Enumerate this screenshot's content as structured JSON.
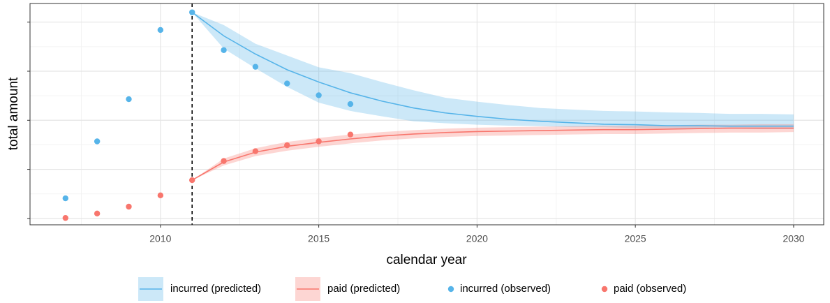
{
  "chart_data": {
    "type": "line",
    "xlabel": "calendar year",
    "ylabel": "total amount",
    "xlim": [
      2005.88,
      2030.95
    ],
    "xticks": [
      2010,
      2015,
      2020,
      2025,
      2030
    ],
    "ylim": [
      -0.13,
      4.38
    ],
    "yticks": [
      0,
      1,
      2,
      3,
      4
    ],
    "grid": true,
    "legend": "bottom",
    "vline": 2011,
    "series": [
      {
        "name": "incurred (predicted)",
        "style": "band",
        "color": "#56b4e9",
        "x": [
          2011,
          2012,
          2013,
          2014,
          2015,
          2016,
          2017,
          2018,
          2019,
          2020,
          2021,
          2022,
          2023,
          2024,
          2025,
          2026,
          2027,
          2028,
          2029,
          2030
        ],
        "values": [
          4.2,
          3.72,
          3.35,
          3.03,
          2.78,
          2.56,
          2.39,
          2.25,
          2.15,
          2.08,
          2.02,
          1.98,
          1.95,
          1.92,
          1.91,
          1.89,
          1.89,
          1.88,
          1.88,
          1.88
        ],
        "lower": [
          4.2,
          3.46,
          3.06,
          2.68,
          2.36,
          2.19,
          2.08,
          1.98,
          1.94,
          1.91,
          1.89,
          1.88,
          1.86,
          1.86,
          1.84,
          1.84,
          1.83,
          1.83,
          1.82,
          1.82
        ],
        "upper": [
          4.2,
          3.94,
          3.56,
          3.32,
          3.08,
          2.96,
          2.78,
          2.61,
          2.46,
          2.38,
          2.31,
          2.25,
          2.22,
          2.19,
          2.18,
          2.16,
          2.15,
          2.13,
          2.13,
          2.12
        ]
      },
      {
        "name": "paid (predicted)",
        "style": "band",
        "color": "#f8766d",
        "x": [
          2011,
          2012,
          2013,
          2014,
          2015,
          2016,
          2017,
          2018,
          2019,
          2020,
          2021,
          2022,
          2023,
          2024,
          2025,
          2026,
          2027,
          2028,
          2029,
          2030
        ],
        "values": [
          0.78,
          1.15,
          1.35,
          1.47,
          1.55,
          1.62,
          1.68,
          1.72,
          1.75,
          1.77,
          1.78,
          1.79,
          1.8,
          1.81,
          1.81,
          1.82,
          1.83,
          1.84,
          1.84,
          1.84
        ],
        "lower": [
          0.78,
          1.08,
          1.27,
          1.38,
          1.46,
          1.53,
          1.59,
          1.63,
          1.66,
          1.68,
          1.69,
          1.7,
          1.71,
          1.72,
          1.72,
          1.73,
          1.74,
          1.75,
          1.75,
          1.76
        ],
        "upper": [
          0.78,
          1.22,
          1.43,
          1.56,
          1.64,
          1.71,
          1.76,
          1.8,
          1.83,
          1.85,
          1.86,
          1.87,
          1.88,
          1.89,
          1.89,
          1.9,
          1.91,
          1.91,
          1.92,
          1.92
        ]
      },
      {
        "name": "incurred (observed)",
        "style": "points",
        "color": "#56b4e9",
        "x": [
          2007,
          2008,
          2009,
          2010,
          2011,
          2012,
          2013,
          2014,
          2015,
          2016
        ],
        "values": [
          0.41,
          1.57,
          2.43,
          3.84,
          4.2,
          3.43,
          3.09,
          2.75,
          2.51,
          2.33
        ]
      },
      {
        "name": "paid (observed)",
        "style": "points",
        "color": "#f8766d",
        "x": [
          2007,
          2008,
          2009,
          2010,
          2011,
          2012,
          2013,
          2014,
          2015,
          2016
        ],
        "values": [
          0.01,
          0.1,
          0.24,
          0.47,
          0.78,
          1.17,
          1.37,
          1.49,
          1.57,
          1.71
        ]
      }
    ]
  }
}
